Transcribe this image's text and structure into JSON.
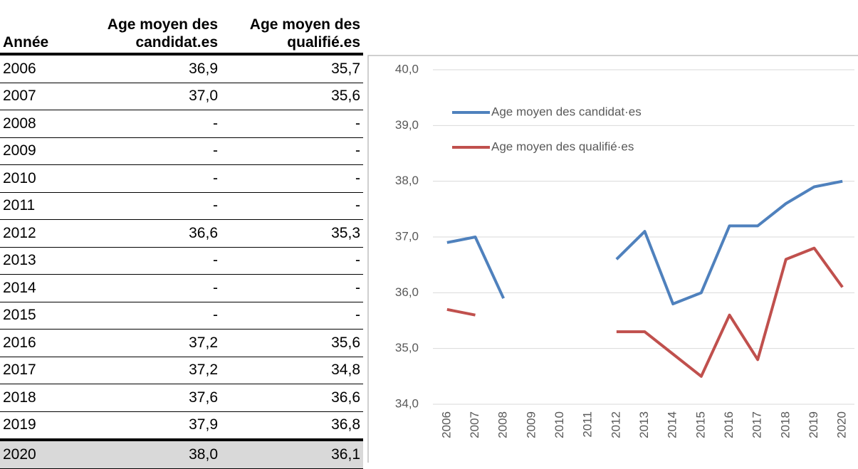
{
  "table": {
    "header": [
      "Année",
      "Age moyen des candidat.es",
      "Age moyen des qualifié.es"
    ],
    "rows": [
      [
        "2006",
        "36,9",
        "35,7"
      ],
      [
        "2007",
        "37,0",
        "35,6"
      ],
      [
        "2008",
        "-",
        "-"
      ],
      [
        "2009",
        "-",
        "-"
      ],
      [
        "2010",
        "-",
        "-"
      ],
      [
        "2011",
        "-",
        "-"
      ],
      [
        "2012",
        "36,6",
        "35,3"
      ],
      [
        "2013",
        "-",
        "-"
      ],
      [
        "2014",
        "-",
        "-"
      ],
      [
        "2015",
        "-",
        "-"
      ],
      [
        "2016",
        "37,2",
        "35,6"
      ],
      [
        "2017",
        "37,2",
        "34,8"
      ],
      [
        "2018",
        "37,6",
        "36,6"
      ],
      [
        "2019",
        "37,9",
        "36,8"
      ],
      [
        "2020",
        "38,0",
        "36,1"
      ]
    ]
  },
  "chart_data": {
    "type": "line",
    "categories": [
      "2006",
      "2007",
      "2008",
      "2009",
      "2010",
      "2011",
      "2012",
      "2013",
      "2014",
      "2015",
      "2016",
      "2017",
      "2018",
      "2019",
      "2020"
    ],
    "series": [
      {
        "name": "Age moyen des candidat·es",
        "color": "#4f81bd",
        "values": [
          36.9,
          37.0,
          35.9,
          null,
          null,
          null,
          36.6,
          37.1,
          35.8,
          36.0,
          37.2,
          37.2,
          37.6,
          37.9,
          38.0
        ]
      },
      {
        "name": "Age moyen des qualifié·es",
        "color": "#c0504d",
        "values": [
          35.7,
          35.6,
          null,
          null,
          null,
          null,
          35.3,
          35.3,
          34.9,
          34.5,
          35.6,
          34.8,
          36.6,
          36.8,
          36.1
        ]
      }
    ],
    "ylim": [
      34,
      40
    ],
    "yticks": [
      {
        "value": 34,
        "label": "34,0"
      },
      {
        "value": 35,
        "label": "35,0"
      },
      {
        "value": 36,
        "label": "36,0"
      },
      {
        "value": 37,
        "label": "37,0"
      },
      {
        "value": 38,
        "label": "38,0"
      },
      {
        "value": 39,
        "label": "39,0"
      },
      {
        "value": 40,
        "label": "40,0"
      }
    ],
    "grid": true,
    "legend": "top-left"
  }
}
